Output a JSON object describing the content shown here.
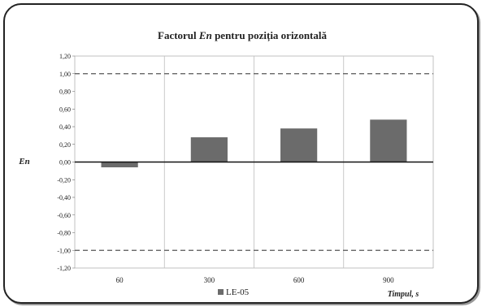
{
  "chart_data": {
    "type": "bar",
    "title_prefix": "Factorul ",
    "title_italic": "En",
    "title_suffix": " pentru poziția orizontală",
    "ylabel": "En",
    "xlabel": "Timpul, s",
    "categories": [
      "60",
      "300",
      "600",
      "900"
    ],
    "series": [
      {
        "name": "LE-05",
        "values": [
          -0.06,
          0.28,
          0.38,
          0.48
        ],
        "color": "#6b6b6b"
      }
    ],
    "ylim": [
      -1.2,
      1.2
    ],
    "yticks": [
      "1,20",
      "1,00",
      "0,80",
      "0,60",
      "0,40",
      "0,20",
      "0,00",
      "-0,20",
      "-0,40",
      "-0,60",
      "-0,80",
      "-1,00",
      "-1,20"
    ],
    "reference_lines": [
      1.0,
      -1.0
    ],
    "legend_position": "bottom",
    "grid": "vertical"
  }
}
